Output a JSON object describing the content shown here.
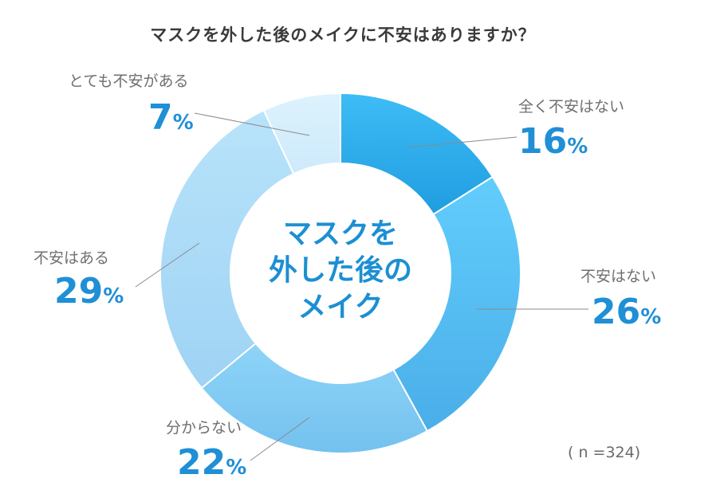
{
  "chart_data": {
    "type": "pie",
    "variant": "donut",
    "title": "マスクを外した後のメイクに不安はありますか？",
    "center_label": [
      "マスクを",
      "外した後の",
      "メイク"
    ],
    "unit": "%",
    "slices": [
      {
        "label": "全く不安はない",
        "value": 16,
        "color": "#2eaaf0"
      },
      {
        "label": "不安はない",
        "value": 26,
        "color": "#4fc0fa"
      },
      {
        "label": "分からない",
        "value": 22,
        "color": "#7fcaf3"
      },
      {
        "label": "不安はある",
        "value": 29,
        "color": "#a8dcf8"
      },
      {
        "label": "とても不安がある",
        "value": 7,
        "color": "#d3eefc"
      }
    ],
    "sample_note": "( n =324)"
  }
}
